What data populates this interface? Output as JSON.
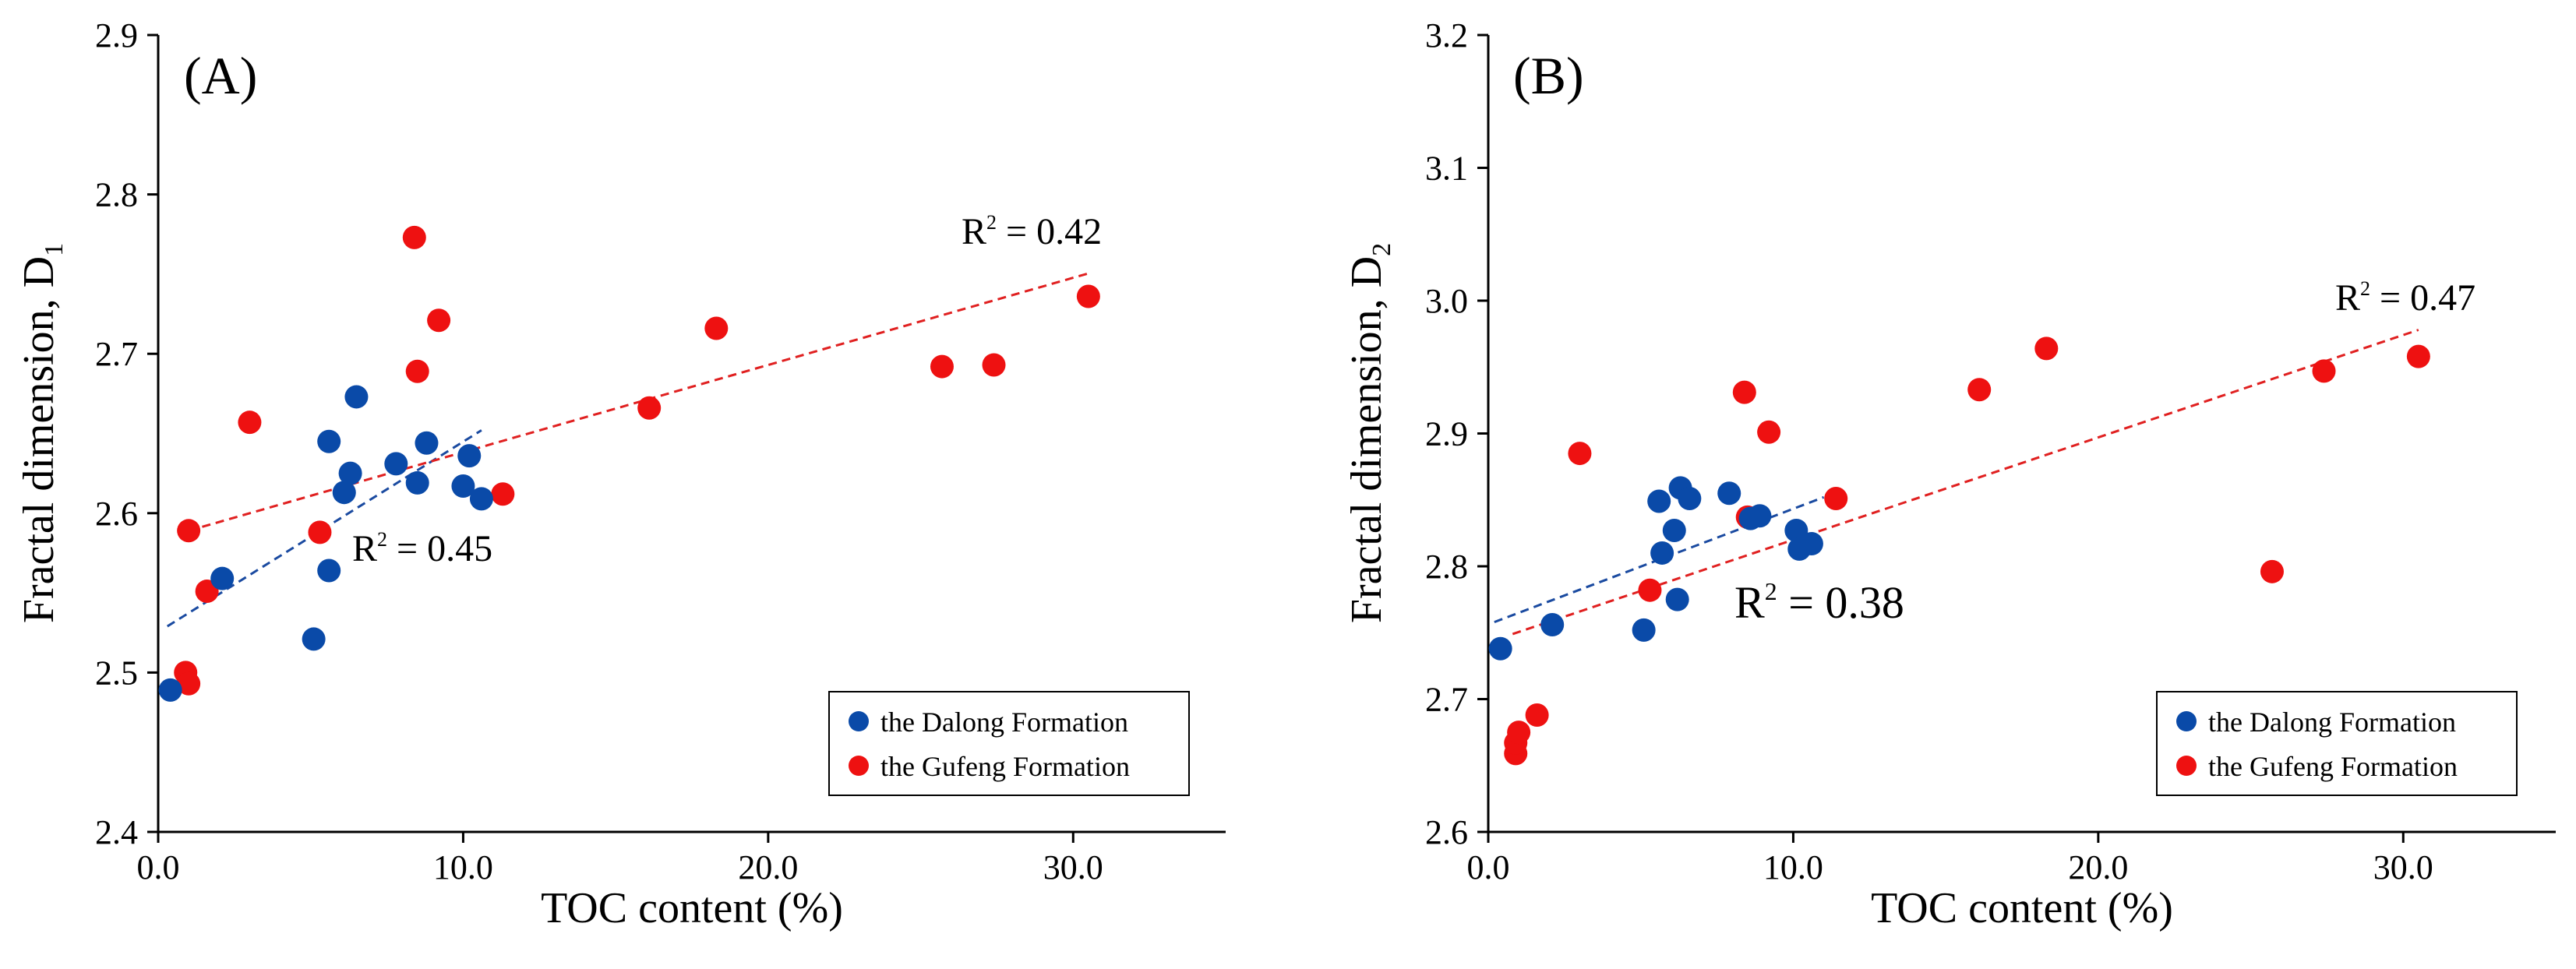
{
  "colors": {
    "dalong": "#0a4aa8",
    "gufeng": "#ee1111",
    "dalong_line": "#1a4aa0",
    "gufeng_line": "#e02020"
  },
  "legend": {
    "dalong": "the Dalong Formation",
    "gufeng": "the Gufeng Formation"
  },
  "chart_data": [
    {
      "type": "scatter",
      "panel_label": "(A)",
      "xlabel": "TOC content (%)",
      "ylabel": {
        "text": "Fractal dimension, D",
        "sub": "1"
      },
      "xlim": [
        0,
        35
      ],
      "ylim": [
        2.4,
        2.9
      ],
      "xticks": [
        0,
        10,
        20,
        30
      ],
      "xtick_labels": [
        "0.0",
        "10.0",
        "20.0",
        "30.0"
      ],
      "yticks": [
        2.4,
        2.5,
        2.6,
        2.7,
        2.8,
        2.9
      ],
      "ytick_labels": [
        "2.4",
        "2.5",
        "2.6",
        "2.7",
        "2.8",
        "2.9"
      ],
      "series": [
        {
          "name": "the Dalong Formation",
          "key": "dalong",
          "points": [
            [
              0.4,
              2.489
            ],
            [
              2.1,
              2.559
            ],
            [
              5.1,
              2.521
            ],
            [
              5.6,
              2.564
            ],
            [
              5.6,
              2.645
            ],
            [
              6.1,
              2.613
            ],
            [
              6.3,
              2.625
            ],
            [
              6.5,
              2.673
            ],
            [
              7.8,
              2.631
            ],
            [
              8.5,
              2.619
            ],
            [
              8.8,
              2.644
            ],
            [
              10.0,
              2.617
            ],
            [
              10.2,
              2.636
            ],
            [
              10.6,
              2.609
            ]
          ],
          "fit": {
            "x": [
              0.3,
              10.6
            ],
            "y": [
              2.529,
              2.652
            ]
          },
          "r2": {
            "base": "R",
            "exp": "2",
            "text": " = 0.45"
          }
        },
        {
          "name": "the Gufeng Formation",
          "key": "gufeng",
          "points": [
            [
              0.9,
              2.5
            ],
            [
              1.0,
              2.493
            ],
            [
              1.0,
              2.589
            ],
            [
              1.6,
              2.551
            ],
            [
              3.0,
              2.657
            ],
            [
              5.3,
              2.588
            ],
            [
              8.4,
              2.773
            ],
            [
              8.5,
              2.689
            ],
            [
              9.2,
              2.721
            ],
            [
              11.3,
              2.612
            ],
            [
              16.1,
              2.666
            ],
            [
              18.3,
              2.716
            ],
            [
              25.7,
              2.692
            ],
            [
              27.4,
              2.693
            ],
            [
              30.5,
              2.736
            ]
          ],
          "fit": {
            "x": [
              1.0,
              30.6
            ],
            "y": [
              2.589,
              2.751
            ]
          },
          "r2": {
            "base": "R",
            "exp": "2",
            "text": " = 0.42"
          }
        }
      ]
    },
    {
      "type": "scatter",
      "panel_label": "(B)",
      "xlabel": "TOC content (%)",
      "ylabel": {
        "text": "Fractal dimension, D",
        "sub": "2"
      },
      "xlim": [
        0,
        35
      ],
      "ylim": [
        2.6,
        3.2
      ],
      "xticks": [
        0,
        10,
        20,
        30
      ],
      "xtick_labels": [
        "0.0",
        "10.0",
        "20.0",
        "30.0"
      ],
      "yticks": [
        2.6,
        2.7,
        2.8,
        2.9,
        3.0,
        3.1,
        3.2
      ],
      "ytick_labels": [
        "2.6",
        "2.7",
        "2.8",
        "2.9",
        "3.0",
        "3.1",
        "3.2"
      ],
      "series": [
        {
          "name": "the Dalong Formation",
          "key": "dalong",
          "points": [
            [
              0.4,
              2.738
            ],
            [
              2.1,
              2.756
            ],
            [
              5.1,
              2.752
            ],
            [
              5.6,
              2.849
            ],
            [
              5.7,
              2.81
            ],
            [
              6.1,
              2.827
            ],
            [
              6.2,
              2.775
            ],
            [
              6.3,
              2.859
            ],
            [
              6.6,
              2.851
            ],
            [
              7.9,
              2.855
            ],
            [
              8.6,
              2.836
            ],
            [
              8.9,
              2.838
            ],
            [
              10.1,
              2.827
            ],
            [
              10.2,
              2.813
            ],
            [
              10.6,
              2.817
            ]
          ],
          "fit": {
            "x": [
              0.2,
              11.0
            ],
            "y": [
              2.758,
              2.852
            ]
          },
          "r2": {
            "base": "R",
            "exp": "2",
            "text": " = 0.38"
          }
        },
        {
          "name": "the Gufeng Formation",
          "key": "gufeng",
          "points": [
            [
              0.9,
              2.659
            ],
            [
              0.9,
              2.667
            ],
            [
              1.0,
              2.675
            ],
            [
              1.6,
              2.688
            ],
            [
              3.0,
              2.885
            ],
            [
              5.3,
              2.782
            ],
            [
              8.4,
              2.931
            ],
            [
              8.5,
              2.837
            ],
            [
              9.2,
              2.901
            ],
            [
              11.4,
              2.851
            ],
            [
              16.1,
              2.933
            ],
            [
              18.3,
              2.964
            ],
            [
              25.7,
              2.796
            ],
            [
              27.4,
              2.947
            ],
            [
              30.5,
              2.958
            ]
          ],
          "fit": {
            "x": [
              0.8,
              30.5
            ],
            "y": [
              2.749,
              2.978
            ]
          },
          "r2": {
            "base": "R",
            "exp": "2",
            "text": " = 0.47"
          }
        }
      ]
    }
  ]
}
